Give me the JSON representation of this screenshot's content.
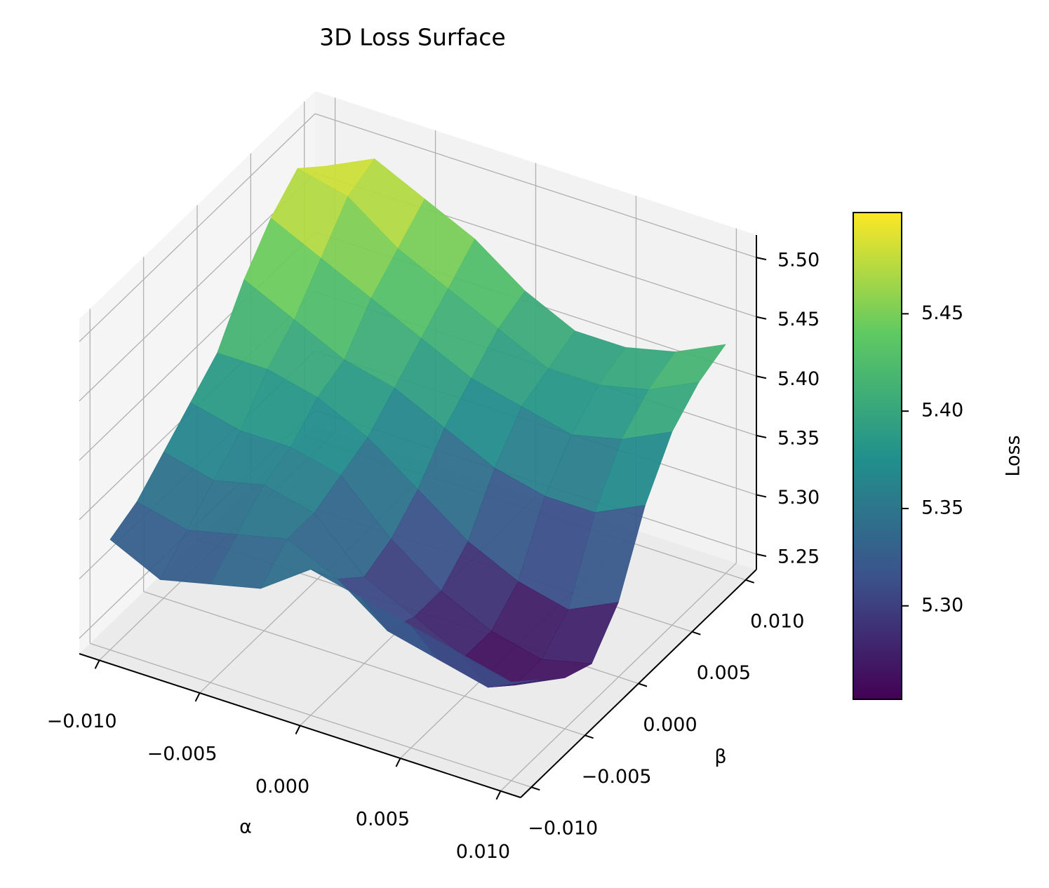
{
  "chart_data": {
    "type": "surface3d",
    "title": "3D Loss Surface",
    "x_label": "α",
    "y_label": "β",
    "colorbar_label": "Loss",
    "x": [
      -0.01,
      -0.0075,
      -0.005,
      -0.0025,
      0,
      0.0025,
      0.005,
      0.0075,
      0.01
    ],
    "y": [
      -0.01,
      -0.0075,
      -0.005,
      -0.0025,
      0,
      0.0025,
      0.005,
      0.0075,
      0.01
    ],
    "z": [
      [
        5.33,
        5.31,
        5.32,
        5.33,
        5.36,
        5.35,
        5.34,
        5.33,
        5.32
      ],
      [
        5.34,
        5.33,
        5.34,
        5.35,
        5.33,
        5.3,
        5.29,
        5.28,
        5.3
      ],
      [
        5.36,
        5.35,
        5.36,
        5.35,
        5.31,
        5.29,
        5.27,
        5.26,
        5.28
      ],
      [
        5.38,
        5.37,
        5.37,
        5.36,
        5.32,
        5.29,
        5.27,
        5.26,
        5.27
      ],
      [
        5.4,
        5.4,
        5.39,
        5.37,
        5.34,
        5.31,
        5.29,
        5.28,
        5.3
      ],
      [
        5.44,
        5.42,
        5.4,
        5.39,
        5.37,
        5.35,
        5.34,
        5.34,
        5.36
      ],
      [
        5.47,
        5.45,
        5.43,
        5.41,
        5.39,
        5.38,
        5.37,
        5.38,
        5.4
      ],
      [
        5.49,
        5.48,
        5.45,
        5.43,
        5.41,
        5.39,
        5.39,
        5.4,
        5.42
      ],
      [
        5.47,
        5.49,
        5.47,
        5.45,
        5.42,
        5.4,
        5.4,
        5.41,
        5.43
      ]
    ],
    "xlim": [
      -0.011,
      0.011
    ],
    "ylim": [
      -0.011,
      0.011
    ],
    "zlim": [
      5.237,
      5.519
    ],
    "xticks": [
      {
        "value": -0.01,
        "label": "−0.010"
      },
      {
        "value": -0.005,
        "label": "−0.005"
      },
      {
        "value": 0,
        "label": "0.000"
      },
      {
        "value": 0.005,
        "label": "0.005"
      },
      {
        "value": 0.01,
        "label": "0.010"
      }
    ],
    "yticks": [
      {
        "value": -0.01,
        "label": "−0.010"
      },
      {
        "value": -0.005,
        "label": "−0.005"
      },
      {
        "value": 0,
        "label": "0.000"
      },
      {
        "value": 0.005,
        "label": "0.005"
      },
      {
        "value": 0.01,
        "label": "0.010"
      }
    ],
    "zticks": [
      5.25,
      {
        "value": 5.3,
        "label": "5.30"
      },
      5.35,
      {
        "value": 5.4,
        "label": "5.40"
      },
      5.45,
      {
        "value": 5.5,
        "label": "5.50"
      }
    ],
    "clim": [
      5.252,
      5.502
    ],
    "cticks": [
      {
        "value": 5.3,
        "label": "5.30"
      },
      5.35,
      {
        "value": 5.4,
        "label": "5.40"
      },
      5.45
    ],
    "colormap": [
      "#440154",
      "#3b528b",
      "#21918c",
      "#5ec962",
      "#fde725"
    ],
    "grid": true
  }
}
